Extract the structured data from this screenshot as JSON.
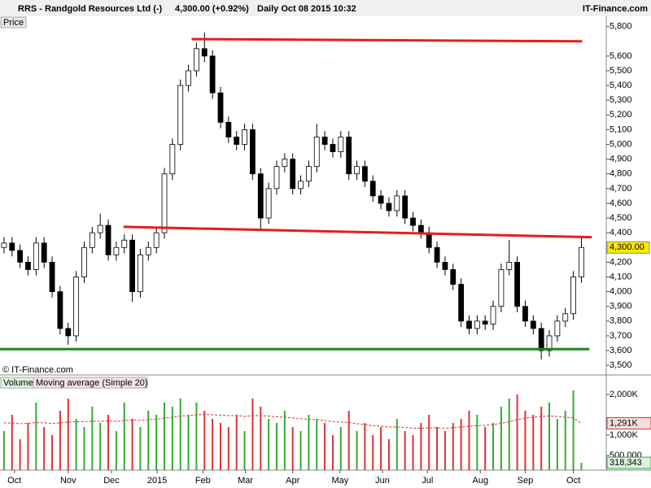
{
  "chart_data": [
    {
      "type": "candlestick",
      "title": "RRS - Randgold Resources Ltd (-)",
      "quote": "4,300.00 (+0.92%)",
      "period": "Daily  Oct 08 2015 10:32",
      "site": "IT-Finance.com",
      "panel_label": "Price",
      "watermark": "© IT-Finance.com",
      "open": [
        4300,
        4330,
        4280,
        4200,
        4150,
        4330,
        4200,
        4000,
        3750,
        3700,
        4100,
        4300,
        4400,
        4450,
        4250,
        4300,
        4350,
        4000,
        4250,
        4300,
        4400,
        4800,
        5000,
        5400,
        5500,
        5650,
        5600,
        5350,
        5150,
        5050,
        5000,
        5100,
        4800,
        4500,
        4700,
        4850,
        4900,
        4700,
        4750,
        4850,
        5050,
        5000,
        4950,
        5050,
        4800,
        4850,
        4750,
        4650,
        4600,
        4550,
        4650,
        4500,
        4450,
        4400,
        4300,
        4200,
        4150,
        4050,
        3800,
        3750,
        3800,
        3780,
        3900,
        4150,
        4200,
        3900,
        3800,
        3750,
        3600,
        3700,
        3800,
        3850,
        4100
      ],
      "high": [
        4370,
        4370,
        4320,
        4240,
        4370,
        4370,
        4240,
        4040,
        3790,
        4140,
        4340,
        4440,
        4530,
        4490,
        4340,
        4390,
        4390,
        4290,
        4340,
        4440,
        4840,
        5040,
        5440,
        5540,
        5690,
        5760,
        5640,
        5390,
        5190,
        5090,
        5140,
        5140,
        4840,
        4740,
        4890,
        4940,
        4940,
        4790,
        4890,
        5140,
        5090,
        5040,
        5090,
        5090,
        4890,
        4890,
        4790,
        4690,
        4640,
        4690,
        4690,
        4540,
        4490,
        4440,
        4340,
        4240,
        4190,
        4090,
        3840,
        3840,
        3840,
        3940,
        4190,
        4350,
        4240,
        3940,
        3840,
        3790,
        3740,
        3840,
        3890,
        4140,
        4370
      ],
      "low": [
        4260,
        4240,
        4160,
        4110,
        4110,
        4160,
        3960,
        3710,
        3640,
        3660,
        4060,
        4260,
        4360,
        4210,
        4210,
        4260,
        3930,
        3960,
        4210,
        4260,
        4360,
        4760,
        4960,
        5360,
        5460,
        5560,
        5310,
        5110,
        5010,
        4960,
        4960,
        4760,
        4420,
        4460,
        4660,
        4810,
        4660,
        4660,
        4710,
        4810,
        4960,
        4910,
        4910,
        4760,
        4760,
        4710,
        4610,
        4560,
        4510,
        4510,
        4460,
        4410,
        4360,
        4260,
        4160,
        4110,
        4010,
        3760,
        3710,
        3710,
        3740,
        3740,
        3860,
        4110,
        3860,
        3760,
        3710,
        3540,
        3560,
        3660,
        3760,
        3810,
        4060
      ],
      "close": [
        4330,
        4280,
        4200,
        4150,
        4330,
        4200,
        4000,
        3750,
        3700,
        4100,
        4300,
        4400,
        4450,
        4250,
        4300,
        4350,
        4000,
        4250,
        4300,
        4400,
        4800,
        5000,
        5400,
        5500,
        5650,
        5600,
        5350,
        5150,
        5050,
        5000,
        5100,
        4800,
        4500,
        4700,
        4850,
        4900,
        4700,
        4750,
        4850,
        5050,
        5000,
        4950,
        5050,
        4800,
        4850,
        4750,
        4650,
        4600,
        4550,
        4650,
        4500,
        4450,
        4400,
        4300,
        4200,
        4150,
        4050,
        3800,
        3750,
        3800,
        3780,
        3900,
        4150,
        4200,
        3900,
        3800,
        3750,
        3600,
        3700,
        3800,
        3850,
        4100,
        4300
      ],
      "up_color": "#ffffff",
      "down_color": "#000000",
      "xlim": [
        -0.5,
        75.1
      ],
      "ylim": [
        3440,
        5870
      ],
      "yticks": [
        {
          "value": 5800,
          "label": "5,800"
        },
        {
          "value": 5600,
          "label": "5,600"
        },
        {
          "value": 5500,
          "label": "5,500"
        },
        {
          "value": 5400,
          "label": "5,400"
        },
        {
          "value": 5300,
          "label": "5,300"
        },
        {
          "value": 5200,
          "label": "5,200"
        },
        {
          "value": 5100,
          "label": "5,100"
        },
        {
          "value": 5000,
          "label": "5,000"
        },
        {
          "value": 4900,
          "label": "4,900"
        },
        {
          "value": 4800,
          "label": "4,800"
        },
        {
          "value": 4700,
          "label": "4,700"
        },
        {
          "value": 4600,
          "label": "4,600"
        },
        {
          "value": 4500,
          "label": "4,500"
        },
        {
          "value": 4400,
          "label": "4,400"
        },
        {
          "value": 4200,
          "label": "4,200"
        },
        {
          "value": 4100,
          "label": "4,100"
        },
        {
          "value": 4000,
          "label": "4,000"
        },
        {
          "value": 3900,
          "label": "3,900"
        },
        {
          "value": 3800,
          "label": "3,800"
        },
        {
          "value": 3700,
          "label": "3,700"
        },
        {
          "value": 3600,
          "label": "3,600"
        },
        {
          "value": 3500,
          "label": "3,500"
        }
      ],
      "last_price": {
        "value": 4300,
        "label": "4,300.00"
      },
      "lines": [
        {
          "color": "#e81c1c",
          "x": [
            23.4,
            72.1
          ],
          "y": [
            5715,
            5700
          ]
        },
        {
          "color": "#e81c1c",
          "x": [
            14.9,
            73.3
          ],
          "y": [
            4440,
            4370
          ]
        },
        {
          "color": "#1a8a1a",
          "x": [
            -0.5,
            73.0
          ],
          "y": [
            3610,
            3610
          ]
        }
      ]
    },
    {
      "type": "bar",
      "xlim": [
        -0.5,
        75.1
      ],
      "ylim": [
        140000,
        2140000
      ],
      "yticks": [
        {
          "value": 2000000,
          "label": "2,000K"
        },
        {
          "value": 1000000,
          "label": "1,000K"
        },
        {
          "value": 500000,
          "label": "500,000"
        }
      ],
      "xticks": [
        {
          "value": 1.3,
          "label": "Oct"
        },
        {
          "value": 8,
          "label": "Nov"
        },
        {
          "value": 13.4,
          "label": "Dec"
        },
        {
          "value": 19.1,
          "label": "2015"
        },
        {
          "value": 24.8,
          "label": "Feb"
        },
        {
          "value": 30.1,
          "label": "Mar"
        },
        {
          "value": 36,
          "label": "Apr"
        },
        {
          "value": 41.9,
          "label": "May"
        },
        {
          "value": 47.2,
          "label": "Jun"
        },
        {
          "value": 52.8,
          "label": "Jul"
        },
        {
          "value": 59.4,
          "label": "Aug"
        },
        {
          "value": 65,
          "label": "Sep"
        },
        {
          "value": 71,
          "label": "Oct"
        }
      ],
      "series": [
        {
          "name": "Volume",
          "color": "#33aa33",
          "down_color": "#dd3333",
          "values": [
            1100000,
            1500000,
            900000,
            1300000,
            1800000,
            1200000,
            1000000,
            1600000,
            1900000,
            1400000,
            1200000,
            1700000,
            1300000,
            1500000,
            1100000,
            1800000,
            1400000,
            1200000,
            1600000,
            1500000,
            1800000,
            1700000,
            1900000,
            1500000,
            1800000,
            1600000,
            1400000,
            1300000,
            1200000,
            1500000,
            1100000,
            1900000,
            1700000,
            1400000,
            1300000,
            1600000,
            1200000,
            1100000,
            1500000,
            1400000,
            1300000,
            1000000,
            1200000,
            1600000,
            1100000,
            1300000,
            1000000,
            1200000,
            900000,
            1400000,
            1100000,
            1000000,
            1300000,
            1500000,
            1200000,
            1100000,
            1300000,
            1400000,
            1600000,
            1500000,
            1200000,
            1300000,
            1700000,
            1900000,
            2000000,
            1600000,
            1500000,
            1700000,
            1800000,
            1400000,
            1600000,
            2100000,
            318343
          ],
          "value_labels": [
            null,
            null,
            null,
            null,
            null,
            null,
            null,
            null,
            null,
            null,
            null,
            null,
            null,
            null,
            null,
            null,
            null,
            null,
            null,
            null,
            null,
            null,
            null,
            null,
            null,
            null,
            null,
            null,
            null,
            null,
            null,
            null,
            null,
            null,
            null,
            null,
            null,
            null,
            null,
            null,
            null,
            null,
            null,
            null,
            null,
            null,
            null,
            null,
            null,
            null,
            null,
            null,
            null,
            null,
            null,
            null,
            null,
            null,
            null,
            null,
            null,
            null,
            null,
            null,
            null,
            null,
            null,
            null,
            null,
            null,
            null,
            null,
            "318,343"
          ]
        },
        {
          "name": "Moving average (Simple 20)",
          "color": "#dd3333",
          "values": [
            1300000,
            1300000,
            1280000,
            1290000,
            1310000,
            1300000,
            1290000,
            1300000,
            1320000,
            1330000,
            1330000,
            1340000,
            1340000,
            1350000,
            1340000,
            1360000,
            1370000,
            1360000,
            1380000,
            1390000,
            1420000,
            1440000,
            1470000,
            1480000,
            1500000,
            1510000,
            1500000,
            1490000,
            1480000,
            1480000,
            1460000,
            1480000,
            1480000,
            1470000,
            1450000,
            1440000,
            1420000,
            1400000,
            1390000,
            1380000,
            1360000,
            1330000,
            1320000,
            1310000,
            1280000,
            1260000,
            1230000,
            1220000,
            1200000,
            1200000,
            1190000,
            1170000,
            1170000,
            1180000,
            1180000,
            1170000,
            1180000,
            1200000,
            1220000,
            1230000,
            1240000,
            1260000,
            1290000,
            1330000,
            1380000,
            1420000,
            1440000,
            1460000,
            1470000,
            1460000,
            1440000,
            1420000,
            1291000
          ],
          "value_labels": [
            null,
            null,
            null,
            null,
            null,
            null,
            null,
            null,
            null,
            null,
            null,
            null,
            null,
            null,
            null,
            null,
            null,
            null,
            null,
            null,
            null,
            null,
            null,
            null,
            null,
            null,
            null,
            null,
            null,
            null,
            null,
            null,
            null,
            null,
            null,
            null,
            null,
            null,
            null,
            null,
            null,
            null,
            null,
            null,
            null,
            null,
            null,
            null,
            null,
            null,
            null,
            null,
            null,
            null,
            null,
            null,
            null,
            null,
            null,
            null,
            null,
            null,
            null,
            null,
            null,
            null,
            null,
            null,
            null,
            null,
            null,
            null,
            "1,291K"
          ]
        }
      ]
    }
  ]
}
